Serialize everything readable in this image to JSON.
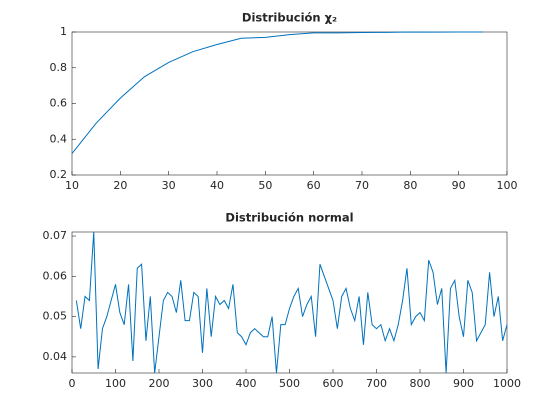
{
  "chart_data": [
    {
      "type": "line",
      "title": "Distribución χ₂",
      "color": "#0072bd",
      "x": [
        10,
        15,
        20,
        25,
        30,
        35,
        40,
        45,
        50,
        55,
        60,
        65,
        70,
        75,
        80,
        85,
        90,
        95
      ],
      "values": [
        0.32,
        0.49,
        0.63,
        0.75,
        0.83,
        0.89,
        0.93,
        0.965,
        0.97,
        0.985,
        0.995,
        0.995,
        0.997,
        0.998,
        1.0,
        0.999,
        1.0,
        1.0
      ],
      "xlim": [
        10,
        100
      ],
      "xticks": [
        10,
        20,
        30,
        40,
        50,
        60,
        70,
        80,
        90,
        100
      ],
      "ylim": [
        0.2,
        1
      ],
      "yticks": [
        0.2,
        0.4,
        0.6,
        0.8,
        1
      ]
    },
    {
      "type": "line",
      "title": "Distribución normal",
      "color": "#0072bd",
      "x": [
        10,
        20,
        30,
        40,
        50,
        60,
        70,
        80,
        90,
        100,
        110,
        120,
        130,
        140,
        150,
        160,
        170,
        180,
        190,
        200,
        210,
        220,
        230,
        240,
        250,
        260,
        270,
        280,
        290,
        300,
        310,
        320,
        330,
        340,
        350,
        360,
        370,
        380,
        390,
        400,
        410,
        420,
        430,
        440,
        450,
        460,
        470,
        480,
        490,
        500,
        510,
        520,
        530,
        540,
        550,
        560,
        570,
        580,
        590,
        600,
        610,
        620,
        630,
        640,
        650,
        660,
        670,
        680,
        690,
        700,
        710,
        720,
        730,
        740,
        750,
        760,
        770,
        780,
        790,
        800,
        810,
        820,
        830,
        840,
        850,
        860,
        870,
        880,
        890,
        900,
        910,
        920,
        930,
        940,
        950,
        960,
        970,
        980,
        990,
        1000
      ],
      "values": [
        0.054,
        0.047,
        0.055,
        0.054,
        0.071,
        0.037,
        0.047,
        0.05,
        0.054,
        0.058,
        0.051,
        0.048,
        0.058,
        0.039,
        0.062,
        0.063,
        0.044,
        0.055,
        0.036,
        0.045,
        0.054,
        0.056,
        0.055,
        0.051,
        0.059,
        0.049,
        0.049,
        0.056,
        0.055,
        0.041,
        0.057,
        0.045,
        0.055,
        0.053,
        0.054,
        0.052,
        0.058,
        0.046,
        0.045,
        0.043,
        0.046,
        0.047,
        0.046,
        0.045,
        0.045,
        0.05,
        0.036,
        0.048,
        0.048,
        0.052,
        0.055,
        0.057,
        0.05,
        0.053,
        0.055,
        0.045,
        0.063,
        0.06,
        0.057,
        0.054,
        0.047,
        0.055,
        0.057,
        0.052,
        0.049,
        0.055,
        0.043,
        0.056,
        0.048,
        0.047,
        0.048,
        0.044,
        0.047,
        0.044,
        0.048,
        0.054,
        0.062,
        0.048,
        0.05,
        0.051,
        0.049,
        0.064,
        0.061,
        0.053,
        0.057,
        0.036,
        0.057,
        0.059,
        0.05,
        0.045,
        0.059,
        0.056,
        0.044,
        0.046,
        0.048,
        0.061,
        0.05,
        0.055,
        0.044,
        0.048
      ],
      "xlim": [
        0,
        1000
      ],
      "xticks": [
        0,
        100,
        200,
        300,
        400,
        500,
        600,
        700,
        800,
        900,
        1000
      ],
      "ylim": [
        0.036,
        0.071
      ],
      "yticks": [
        0.04,
        0.05,
        0.06,
        0.07
      ]
    }
  ]
}
